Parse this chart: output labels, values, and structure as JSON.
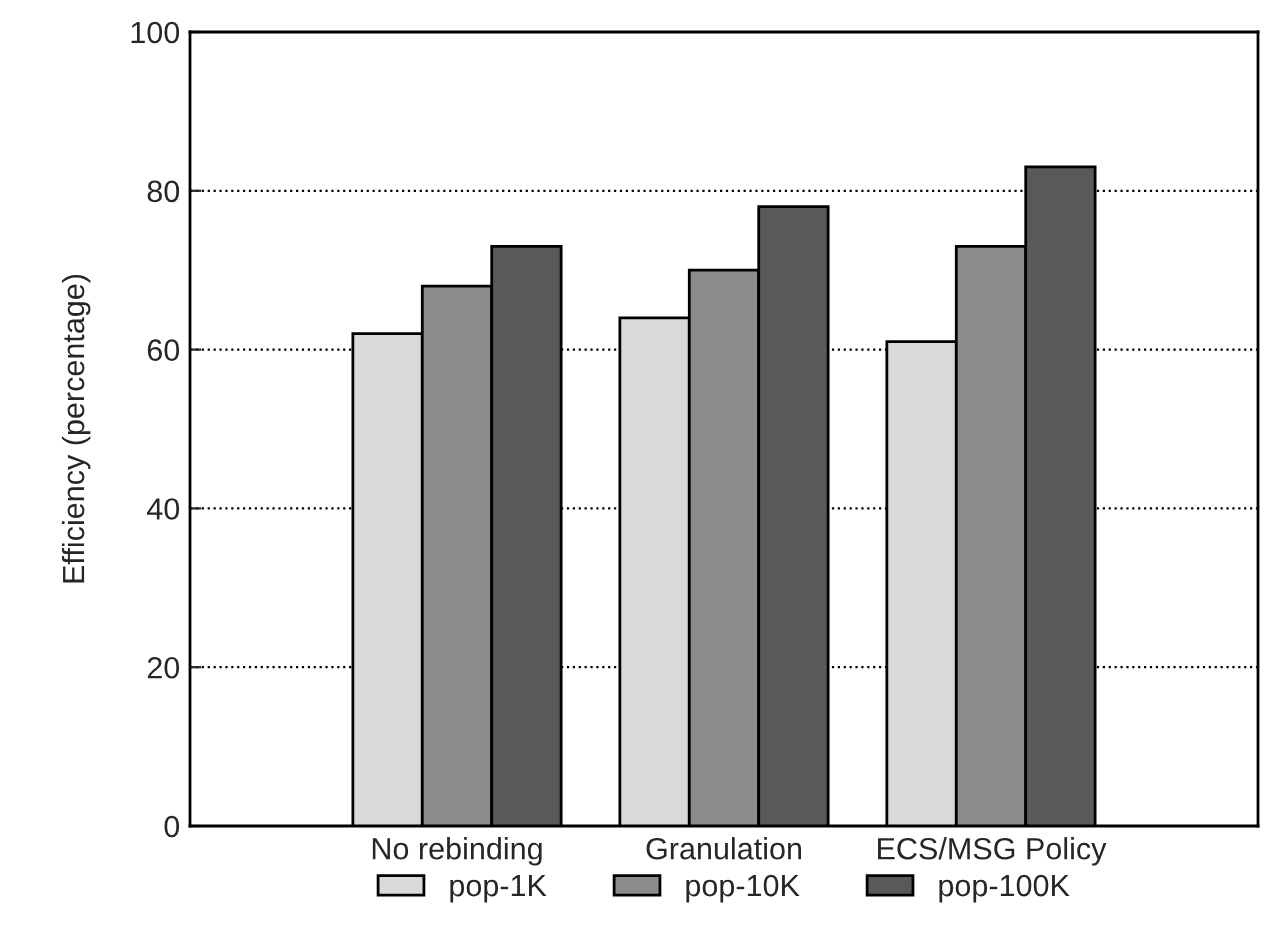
{
  "chart_data": {
    "type": "bar",
    "ylabel": "Efficiency (percentage)",
    "categories": [
      "No rebinding",
      "Granulation",
      "ECS/MSG Policy"
    ],
    "series": [
      {
        "name": "pop-1K",
        "color": "#d9d9d9",
        "values": [
          62,
          64,
          61
        ]
      },
      {
        "name": "pop-10K",
        "color": "#8c8c8c",
        "values": [
          68,
          70,
          73
        ]
      },
      {
        "name": "pop-100K",
        "color": "#595959",
        "values": [
          73,
          78,
          83
        ]
      }
    ],
    "ylim": [
      0,
      100
    ],
    "yticks": [
      0,
      20,
      40,
      60,
      80,
      100
    ],
    "grid": "y",
    "legend": "bottom"
  }
}
